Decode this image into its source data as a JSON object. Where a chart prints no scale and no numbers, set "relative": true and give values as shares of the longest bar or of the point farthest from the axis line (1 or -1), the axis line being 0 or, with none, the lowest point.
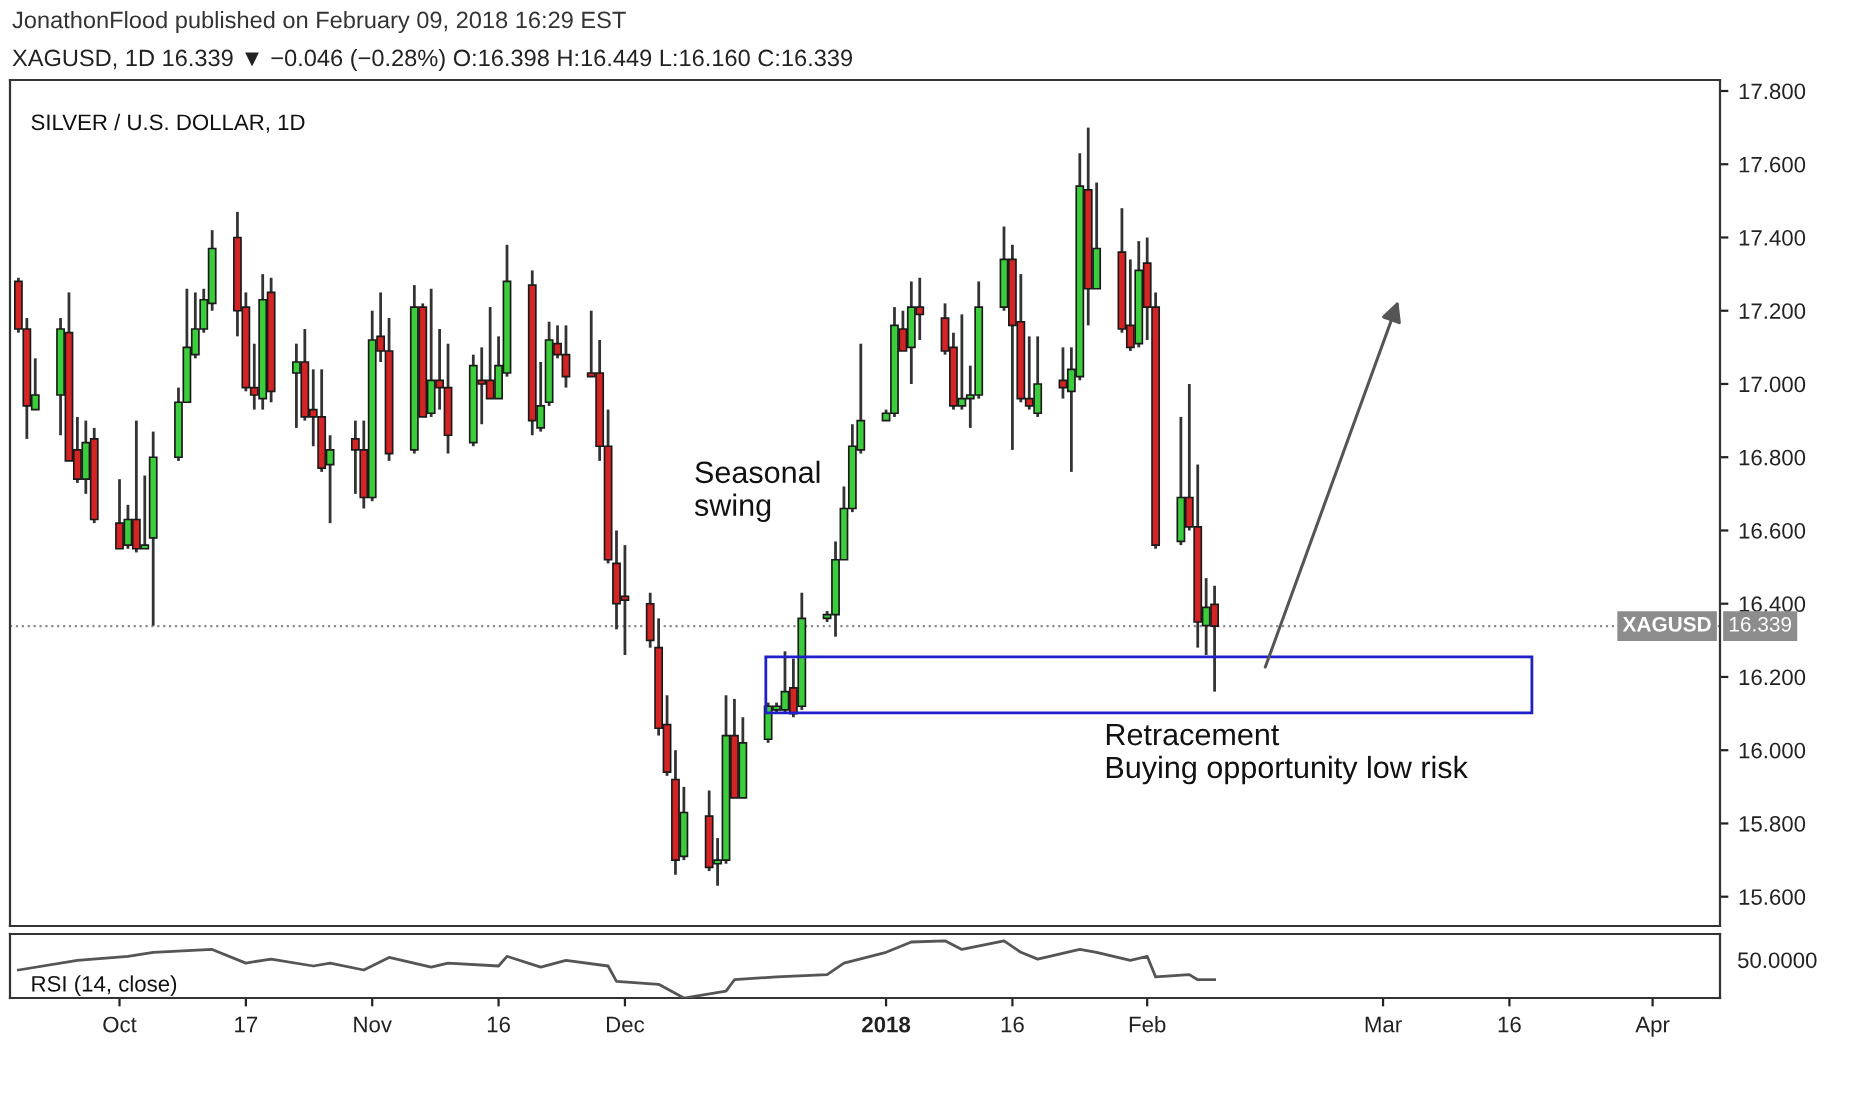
{
  "chart_data": [
    {
      "type": "candlestick",
      "title": "SILVER / U.S. DOLLAR, 1D",
      "subtitle": "XAGUSD, 1D 16.339 ▼ −0.046 (−0.28%) O:16.398 H:16.449 L:16.160 C:16.339",
      "annotations": [
        "Seasonal\nswing",
        "Retracement\nBuying opportunity low risk",
        "JonathonFlood published on February 09, 2018 16:29 EST",
        {
          "text": "16.339",
          "x": "2018-04-10",
          "y": 16.339
        }
      ],
      "x": [
        "2017-09-20",
        "2017-09-21",
        "2017-09-22",
        "2017-09-25",
        "2017-09-26",
        "2017-09-27",
        "2017-09-28",
        "2017-09-29",
        "2017-10-02",
        "2017-10-03",
        "2017-10-04",
        "2017-10-05",
        "2017-10-06",
        "2017-10-09",
        "2017-10-10",
        "2017-10-11",
        "2017-10-12",
        "2017-10-13",
        "2017-10-16",
        "2017-10-17",
        "2017-10-18",
        "2017-10-19",
        "2017-10-20",
        "2017-10-23",
        "2017-10-24",
        "2017-10-25",
        "2017-10-26",
        "2017-10-27",
        "2017-10-30",
        "2017-10-31",
        "2017-11-01",
        "2017-11-02",
        "2017-11-03",
        "2017-11-06",
        "2017-11-07",
        "2017-11-08",
        "2017-11-09",
        "2017-11-10",
        "2017-11-13",
        "2017-11-14",
        "2017-11-15",
        "2017-11-16",
        "2017-11-17",
        "2017-11-20",
        "2017-11-21",
        "2017-11-22",
        "2017-11-23",
        "2017-11-24",
        "2017-11-27",
        "2017-11-28",
        "2017-11-29",
        "2017-11-30",
        "2017-12-01",
        "2017-12-04",
        "2017-12-05",
        "2017-12-06",
        "2017-12-07",
        "2017-12-08",
        "2017-12-11",
        "2017-12-12",
        "2017-12-13",
        "2017-12-14",
        "2017-12-15",
        "2017-12-18",
        "2017-12-19",
        "2017-12-20",
        "2017-12-21",
        "2017-12-22",
        "2017-12-25",
        "2017-12-26",
        "2017-12-27",
        "2017-12-28",
        "2017-12-29",
        "2018-01-01",
        "2018-01-02",
        "2018-01-03",
        "2018-01-04",
        "2018-01-05",
        "2018-01-08",
        "2018-01-09",
        "2018-01-10",
        "2018-01-11",
        "2018-01-12",
        "2018-01-15",
        "2018-01-16",
        "2018-01-17",
        "2018-01-18",
        "2018-01-19",
        "2018-01-22",
        "2018-01-23",
        "2018-01-24",
        "2018-01-25",
        "2018-01-26",
        "2018-01-29",
        "2018-01-30",
        "2018-01-31",
        "2018-02-01",
        "2018-02-02",
        "2018-02-05",
        "2018-02-06",
        "2018-02-07",
        "2018-02-08",
        "2018-02-09"
      ],
      "ohlc": [
        [
          17.28,
          17.29,
          17.14,
          17.15
        ],
        [
          17.15,
          17.18,
          16.85,
          16.94
        ],
        [
          16.93,
          17.07,
          16.93,
          16.97
        ],
        [
          16.97,
          17.18,
          16.86,
          17.15
        ],
        [
          17.14,
          17.25,
          16.79,
          16.79
        ],
        [
          16.82,
          16.91,
          16.73,
          16.74
        ],
        [
          16.74,
          16.9,
          16.7,
          16.84
        ],
        [
          16.85,
          16.88,
          16.62,
          16.63
        ],
        [
          16.62,
          16.74,
          16.55,
          16.55
        ],
        [
          16.56,
          16.67,
          16.55,
          16.63
        ],
        [
          16.63,
          16.9,
          16.54,
          16.55
        ],
        [
          16.55,
          16.75,
          16.55,
          16.56
        ],
        [
          16.58,
          16.87,
          16.34,
          16.8
        ],
        [
          16.8,
          16.99,
          16.79,
          16.95
        ],
        [
          16.95,
          17.26,
          16.95,
          17.1
        ],
        [
          17.08,
          17.25,
          17.07,
          17.15
        ],
        [
          17.15,
          17.26,
          17.14,
          17.23
        ],
        [
          17.22,
          17.42,
          17.2,
          17.37
        ],
        [
          17.4,
          17.47,
          17.13,
          17.2
        ],
        [
          17.21,
          17.25,
          16.98,
          16.99
        ],
        [
          16.99,
          17.11,
          16.93,
          16.97
        ],
        [
          16.96,
          17.3,
          16.93,
          17.23
        ],
        [
          17.25,
          17.29,
          16.95,
          16.98
        ],
        [
          17.03,
          17.11,
          16.88,
          17.06
        ],
        [
          17.06,
          17.15,
          16.9,
          16.91
        ],
        [
          16.93,
          17.04,
          16.83,
          16.91
        ],
        [
          16.91,
          17.04,
          16.76,
          16.77
        ],
        [
          16.78,
          16.86,
          16.62,
          16.82
        ],
        [
          16.85,
          16.9,
          16.7,
          16.82
        ],
        [
          16.82,
          16.9,
          16.66,
          16.69
        ],
        [
          16.69,
          17.2,
          16.68,
          17.12
        ],
        [
          17.13,
          17.25,
          17.06,
          17.09
        ],
        [
          17.09,
          17.18,
          16.79,
          16.81
        ],
        [
          16.82,
          17.27,
          16.81,
          17.21
        ],
        [
          17.21,
          17.22,
          16.91,
          16.91
        ],
        [
          16.92,
          17.26,
          16.91,
          17.01
        ],
        [
          17.01,
          17.15,
          16.93,
          16.99
        ],
        [
          16.99,
          17.11,
          16.81,
          16.86
        ],
        [
          16.84,
          17.08,
          16.83,
          17.05
        ],
        [
          17.01,
          17.1,
          16.89,
          17.0
        ],
        [
          17.01,
          17.21,
          16.96,
          16.96
        ],
        [
          16.96,
          17.13,
          16.96,
          17.05
        ],
        [
          17.03,
          17.38,
          17.02,
          17.28
        ],
        [
          17.27,
          17.31,
          16.86,
          16.9
        ],
        [
          16.88,
          17.06,
          16.87,
          16.94
        ],
        [
          16.95,
          17.17,
          16.94,
          17.12
        ],
        [
          17.11,
          17.16,
          17.07,
          17.08
        ],
        [
          17.08,
          17.16,
          16.99,
          17.02
        ],
        [
          17.03,
          17.2,
          17.02,
          17.02
        ],
        [
          17.03,
          17.12,
          16.79,
          16.83
        ],
        [
          16.83,
          16.93,
          16.51,
          16.52
        ],
        [
          16.51,
          16.6,
          16.33,
          16.4
        ],
        [
          16.42,
          16.56,
          16.26,
          16.41
        ],
        [
          16.4,
          16.43,
          16.28,
          16.3
        ],
        [
          16.28,
          16.36,
          16.04,
          16.06
        ],
        [
          16.07,
          16.15,
          15.93,
          15.94
        ],
        [
          15.92,
          16.0,
          15.66,
          15.7
        ],
        [
          15.71,
          15.9,
          15.7,
          15.83
        ],
        [
          15.82,
          15.89,
          15.67,
          15.68
        ],
        [
          15.69,
          15.76,
          15.63,
          15.7
        ],
        [
          15.7,
          16.15,
          15.69,
          16.04
        ],
        [
          16.04,
          16.14,
          15.87,
          15.87
        ],
        [
          15.87,
          16.09,
          15.87,
          16.02
        ],
        [
          16.03,
          16.13,
          16.02,
          16.12
        ],
        [
          16.11,
          16.13,
          16.1,
          16.12
        ],
        [
          16.11,
          16.27,
          16.1,
          16.16
        ],
        [
          16.17,
          16.25,
          16.09,
          16.1
        ],
        [
          16.12,
          16.43,
          16.11,
          16.36
        ],
        [
          16.36,
          16.38,
          16.35,
          16.37
        ],
        [
          16.37,
          16.57,
          16.31,
          16.52
        ],
        [
          16.52,
          16.72,
          16.52,
          16.66
        ],
        [
          16.66,
          16.89,
          16.65,
          16.83
        ],
        [
          16.82,
          17.11,
          16.81,
          16.9
        ],
        [
          16.9,
          16.93,
          16.9,
          16.92
        ],
        [
          16.92,
          17.21,
          16.91,
          17.16
        ],
        [
          17.15,
          17.2,
          17.09,
          17.09
        ],
        [
          17.1,
          17.28,
          17.0,
          17.21
        ],
        [
          17.21,
          17.29,
          17.12,
          17.19
        ],
        [
          17.18,
          17.22,
          17.08,
          17.09
        ],
        [
          17.1,
          17.14,
          16.93,
          16.94
        ],
        [
          16.94,
          17.19,
          16.93,
          16.96
        ],
        [
          16.96,
          17.05,
          16.88,
          16.97
        ],
        [
          16.97,
          17.28,
          16.96,
          17.21
        ],
        [
          17.21,
          17.43,
          17.2,
          17.34
        ],
        [
          17.34,
          17.38,
          16.82,
          17.16
        ],
        [
          17.17,
          17.3,
          16.95,
          16.96
        ],
        [
          16.96,
          17.13,
          16.93,
          16.94
        ],
        [
          16.92,
          17.13,
          16.91,
          17.0
        ],
        [
          17.01,
          17.1,
          16.96,
          16.99
        ],
        [
          16.98,
          17.1,
          16.76,
          17.04
        ],
        [
          17.02,
          17.63,
          17.01,
          17.54
        ],
        [
          17.53,
          17.7,
          17.16,
          17.26
        ],
        [
          17.26,
          17.55,
          17.26,
          17.37
        ],
        [
          17.36,
          17.48,
          17.14,
          17.15
        ],
        [
          17.16,
          17.34,
          17.09,
          17.1
        ],
        [
          17.11,
          17.39,
          17.1,
          17.31
        ],
        [
          17.33,
          17.4,
          17.12,
          17.21
        ],
        [
          17.21,
          17.25,
          16.55,
          16.56
        ],
        [
          16.57,
          16.91,
          16.56,
          16.69
        ],
        [
          16.69,
          17.0,
          16.6,
          16.61
        ],
        [
          16.61,
          16.78,
          16.28,
          16.35
        ],
        [
          16.34,
          16.47,
          16.26,
          16.39
        ],
        [
          16.398,
          16.449,
          16.16,
          16.339
        ]
      ],
      "colors": [
        "#d42424",
        "#d42424",
        "#3ccd3c",
        "#3ccd3c",
        "#d42424",
        "#d42424",
        "#3ccd3c",
        "#d42424",
        "#d42424",
        "#3ccd3c",
        "#d42424",
        "#3ccd3c",
        "#3ccd3c",
        "#3ccd3c",
        "#3ccd3c",
        "#3ccd3c",
        "#3ccd3c",
        "#3ccd3c",
        "#d42424",
        "#d42424",
        "#d42424",
        "#3ccd3c",
        "#d42424",
        "#3ccd3c",
        "#d42424",
        "#d42424",
        "#d42424",
        "#3ccd3c",
        "#d42424",
        "#d42424",
        "#3ccd3c",
        "#d42424",
        "#d42424",
        "#3ccd3c",
        "#d42424",
        "#3ccd3c",
        "#d42424",
        "#d42424",
        "#3ccd3c",
        "#d42424",
        "#d42424",
        "#3ccd3c",
        "#3ccd3c",
        "#d42424",
        "#3ccd3c",
        "#3ccd3c",
        "#d42424",
        "#d42424",
        "#d42424",
        "#d42424",
        "#d42424",
        "#d42424",
        "#d42424",
        "#d42424",
        "#d42424",
        "#d42424",
        "#d42424",
        "#3ccd3c",
        "#d42424",
        "#3ccd3c",
        "#3ccd3c",
        "#d42424",
        "#3ccd3c",
        "#3ccd3c",
        "#3ccd3c",
        "#3ccd3c",
        "#d42424",
        "#3ccd3c",
        "#3ccd3c",
        "#3ccd3c",
        "#3ccd3c",
        "#3ccd3c",
        "#3ccd3c",
        "#3ccd3c",
        "#3ccd3c",
        "#d42424",
        "#3ccd3c",
        "#d42424",
        "#d42424",
        "#d42424",
        "#3ccd3c",
        "#3ccd3c",
        "#3ccd3c",
        "#3ccd3c",
        "#d42424",
        "#d42424",
        "#d42424",
        "#3ccd3c",
        "#d42424",
        "#3ccd3c",
        "#3ccd3c",
        "#d42424",
        "#3ccd3c",
        "#d42424",
        "#d42424",
        "#3ccd3c",
        "#d42424",
        "#d42424",
        "#3ccd3c",
        "#d42424",
        "#d42424",
        "#3ccd3c",
        "#d42424"
      ],
      "xlim": [
        "2017-09-19",
        "2018-04-10"
      ],
      "ylim": [
        15.52,
        17.83
      ],
      "yticks": [
        {
          "value": 15.6,
          "label": "15.600"
        },
        {
          "value": 15.8,
          "label": "15.800"
        },
        {
          "value": 16.0,
          "label": "16.000"
        },
        {
          "value": 16.2,
          "label": "16.200"
        },
        {
          "value": 16.4,
          "label": "16.400"
        },
        {
          "value": 16.6,
          "label": "16.600"
        },
        {
          "value": 16.8,
          "label": "16.800"
        },
        {
          "value": 17.0,
          "label": "17.000"
        },
        {
          "value": 17.2,
          "label": "17.200"
        },
        {
          "value": 17.4,
          "label": "17.400"
        },
        {
          "value": 17.6,
          "label": "17.600"
        },
        {
          "value": 17.8,
          "label": "17.800"
        }
      ],
      "tick_labels": "y",
      "ref_lines": [
        {
          "axis": "y",
          "value": 16.339,
          "label": "XAGUSD",
          "color": "#8c8c8c",
          "line_style": "dotted"
        }
      ]
    },
    {
      "type": "line",
      "title": "RSI (14, close)",
      "relative": true,
      "color": "#555555",
      "x": [
        "2017-09-20",
        "2017-09-27",
        "2017-10-03",
        "2017-10-06",
        "2017-10-13",
        "2017-10-17",
        "2017-10-19",
        "2017-10-20",
        "2017-10-25",
        "2017-10-27",
        "2017-10-31",
        "2017-11-03",
        "2017-11-08",
        "2017-11-10",
        "2017-11-16",
        "2017-11-17",
        "2017-11-21",
        "2017-11-24",
        "2017-11-29",
        "2017-11-30",
        "2017-12-05",
        "2017-12-08",
        "2017-12-13",
        "2017-12-14",
        "2017-12-19",
        "2017-12-25",
        "2017-12-27",
        "2018-01-01",
        "2018-01-04",
        "2018-01-08",
        "2018-01-10",
        "2018-01-15",
        "2018-01-17",
        "2018-01-19",
        "2018-01-24",
        "2018-01-26",
        "2018-01-30",
        "2018-02-01",
        "2018-02-02",
        "2018-02-06",
        "2018-02-07",
        "2018-02-09"
      ],
      "values": [
        0.49,
        0.66,
        0.73,
        0.8,
        0.85,
        0.61,
        0.66,
        0.68,
        0.56,
        0.61,
        0.49,
        0.71,
        0.54,
        0.61,
        0.56,
        0.73,
        0.54,
        0.66,
        0.56,
        0.29,
        0.24,
        0.0,
        0.12,
        0.32,
        0.37,
        0.41,
        0.61,
        0.8,
        0.98,
        1.0,
        0.85,
        1.0,
        0.8,
        0.68,
        0.85,
        0.8,
        0.66,
        0.73,
        0.37,
        0.41,
        0.32,
        0.32
      ],
      "annotations": [
        "50.0000"
      ],
      "xlim": [
        "2017-09-19",
        "2018-04-10"
      ],
      "xticks": [
        {
          "value": "2017-10-02",
          "label": "Oct"
        },
        {
          "value": "2017-10-17",
          "label": "17"
        },
        {
          "value": "2017-11-01",
          "label": "Nov"
        },
        {
          "value": "2017-11-16",
          "label": "16"
        },
        {
          "value": "2017-12-01",
          "label": "Dec"
        },
        {
          "value": "2018-01-01",
          "label": "2018"
        },
        {
          "value": "2018-01-16",
          "label": "16"
        },
        {
          "value": "2018-02-01",
          "label": "Feb"
        },
        {
          "value": "2018-03-01",
          "label": "Mar"
        },
        {
          "value": "2018-03-16",
          "label": "16"
        },
        {
          "value": "2018-04-02",
          "label": "Apr"
        }
      ],
      "tick_labels": "x"
    }
  ]
}
